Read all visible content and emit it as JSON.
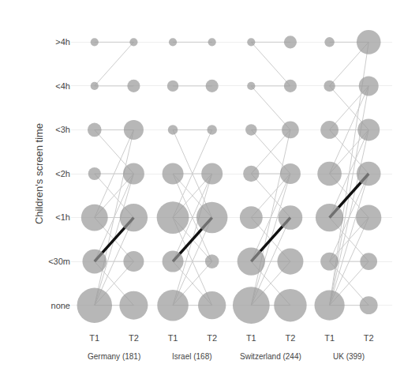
{
  "chart_data": {
    "type": "bubble_transition",
    "ylabel": "Children's screen time",
    "categories": [
      "none",
      "<30m",
      "<1h",
      "<2h",
      "<3h",
      "<4h",
      ">4h"
    ],
    "x_labels": [
      "T1",
      "T2"
    ],
    "color": "#999999",
    "line_color": "#cccccc",
    "bold_color": "#111111",
    "grid": true,
    "groups": [
      {
        "name": "Germany (181)",
        "T1": [
          0.38,
          0.18,
          0.22,
          0.05,
          0.06,
          0.02,
          0.02
        ],
        "T2": [
          0.25,
          0.13,
          0.24,
          0.14,
          0.12,
          0.05,
          0.02
        ],
        "transitions": [
          [
            0,
            0
          ],
          [
            1,
            1
          ],
          [
            2,
            2
          ],
          [
            3,
            3
          ],
          [
            4,
            4
          ],
          [
            5,
            5
          ],
          [
            6,
            6
          ],
          [
            0,
            1
          ],
          [
            0,
            2
          ],
          [
            0,
            3
          ],
          [
            0,
            4
          ],
          [
            1,
            0
          ],
          [
            1,
            2
          ],
          [
            1,
            3
          ],
          [
            2,
            1
          ],
          [
            2,
            3
          ],
          [
            2,
            4
          ],
          [
            3,
            2
          ],
          [
            4,
            3
          ],
          [
            5,
            6
          ]
        ],
        "bold": [
          1,
          2
        ]
      },
      {
        "name": "Israel (168)",
        "T1": [
          0.3,
          0.14,
          0.32,
          0.14,
          0.03,
          0.04,
          0.02
        ],
        "T2": [
          0.24,
          0.06,
          0.3,
          0.14,
          0.03,
          0.05,
          0.02
        ],
        "transitions": [
          [
            0,
            0
          ],
          [
            1,
            1
          ],
          [
            2,
            2
          ],
          [
            3,
            3
          ],
          [
            4,
            4
          ],
          [
            5,
            5
          ],
          [
            6,
            6
          ],
          [
            0,
            1
          ],
          [
            0,
            2
          ],
          [
            0,
            3
          ],
          [
            1,
            0
          ],
          [
            1,
            2
          ],
          [
            1,
            3
          ],
          [
            2,
            0
          ],
          [
            2,
            1
          ],
          [
            2,
            3
          ],
          [
            2,
            4
          ],
          [
            3,
            1
          ],
          [
            3,
            2
          ],
          [
            4,
            2
          ]
        ],
        "bold": [
          1,
          2
        ]
      },
      {
        "name": "Switzerland (244)",
        "T1": [
          0.42,
          0.24,
          0.16,
          0.08,
          0.04,
          0.02,
          0.02
        ],
        "T2": [
          0.33,
          0.21,
          0.18,
          0.13,
          0.09,
          0.05,
          0.05
        ],
        "transitions": [
          [
            0,
            0
          ],
          [
            1,
            1
          ],
          [
            2,
            2
          ],
          [
            3,
            3
          ],
          [
            4,
            4
          ],
          [
            5,
            5
          ],
          [
            6,
            6
          ],
          [
            0,
            1
          ],
          [
            0,
            2
          ],
          [
            0,
            3
          ],
          [
            0,
            4
          ],
          [
            1,
            0
          ],
          [
            1,
            2
          ],
          [
            1,
            3
          ],
          [
            2,
            1
          ],
          [
            2,
            3
          ],
          [
            3,
            2
          ],
          [
            3,
            4
          ],
          [
            4,
            3
          ],
          [
            5,
            4
          ],
          [
            6,
            5
          ]
        ],
        "bold": [
          1,
          2
        ]
      },
      {
        "name": "UK (399)",
        "T1": [
          0.28,
          0.1,
          0.24,
          0.18,
          0.1,
          0.04,
          0.03
        ],
        "T2": [
          0.1,
          0.09,
          0.2,
          0.18,
          0.15,
          0.12,
          0.18
        ],
        "transitions": [
          [
            0,
            0
          ],
          [
            1,
            1
          ],
          [
            2,
            2
          ],
          [
            3,
            3
          ],
          [
            4,
            4
          ],
          [
            5,
            5
          ],
          [
            6,
            6
          ],
          [
            0,
            1
          ],
          [
            0,
            2
          ],
          [
            0,
            3
          ],
          [
            0,
            4
          ],
          [
            0,
            5
          ],
          [
            0,
            6
          ],
          [
            1,
            0
          ],
          [
            1,
            2
          ],
          [
            1,
            3
          ],
          [
            2,
            1
          ],
          [
            2,
            3
          ],
          [
            2,
            4
          ],
          [
            3,
            2
          ],
          [
            3,
            4
          ],
          [
            3,
            5
          ],
          [
            4,
            3
          ],
          [
            4,
            5
          ],
          [
            5,
            4
          ],
          [
            5,
            6
          ]
        ],
        "bold": [
          2,
          3
        ]
      }
    ]
  }
}
